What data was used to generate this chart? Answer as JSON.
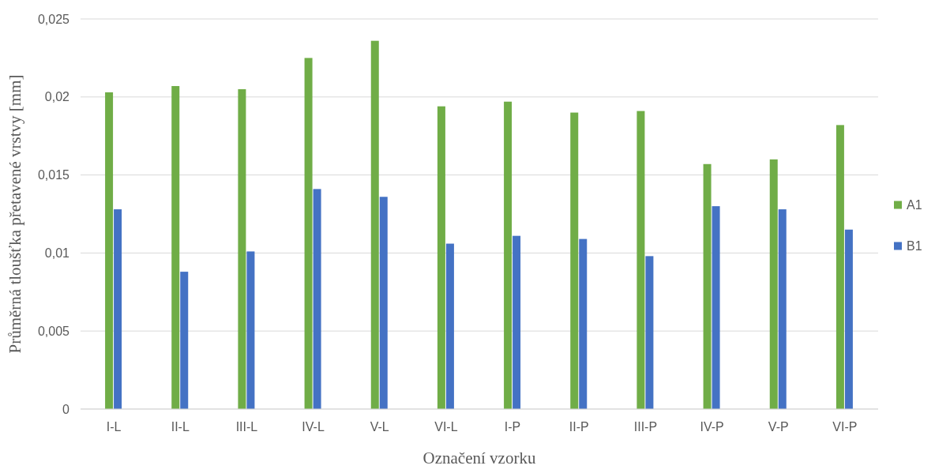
{
  "chart_data": {
    "type": "bar",
    "xlabel": "Označení vzorku",
    "ylabel": "Průměrná tloušťka přetavené vrstvy [mm]",
    "categories": [
      "I-L",
      "II-L",
      "III-L",
      "IV-L",
      "V-L",
      "VI-L",
      "I-P",
      "II-P",
      "III-P",
      "IV-P",
      "V-P",
      "VI-P"
    ],
    "series": [
      {
        "name": "A1",
        "color": "#70ad47",
        "values": [
          0.0203,
          0.0207,
          0.0205,
          0.0225,
          0.0236,
          0.0194,
          0.0197,
          0.019,
          0.0191,
          0.0157,
          0.016,
          0.0182
        ]
      },
      {
        "name": "B1",
        "color": "#4472c4",
        "values": [
          0.0128,
          0.0088,
          0.0101,
          0.0141,
          0.0136,
          0.0106,
          0.0111,
          0.0109,
          0.0098,
          0.013,
          0.0128,
          0.0115
        ]
      }
    ],
    "ylim": [
      0,
      0.025
    ],
    "yticks": [
      0,
      {
        "value": 0.005,
        "label": "0,005"
      },
      {
        "value": 0.01,
        "label": "0,01"
      },
      {
        "value": 0.015,
        "label": "0,015"
      },
      {
        "value": 0.02,
        "label": "0,02"
      },
      {
        "value": 0.025,
        "label": "0,025"
      }
    ],
    "grid": "y",
    "legend": "right"
  }
}
